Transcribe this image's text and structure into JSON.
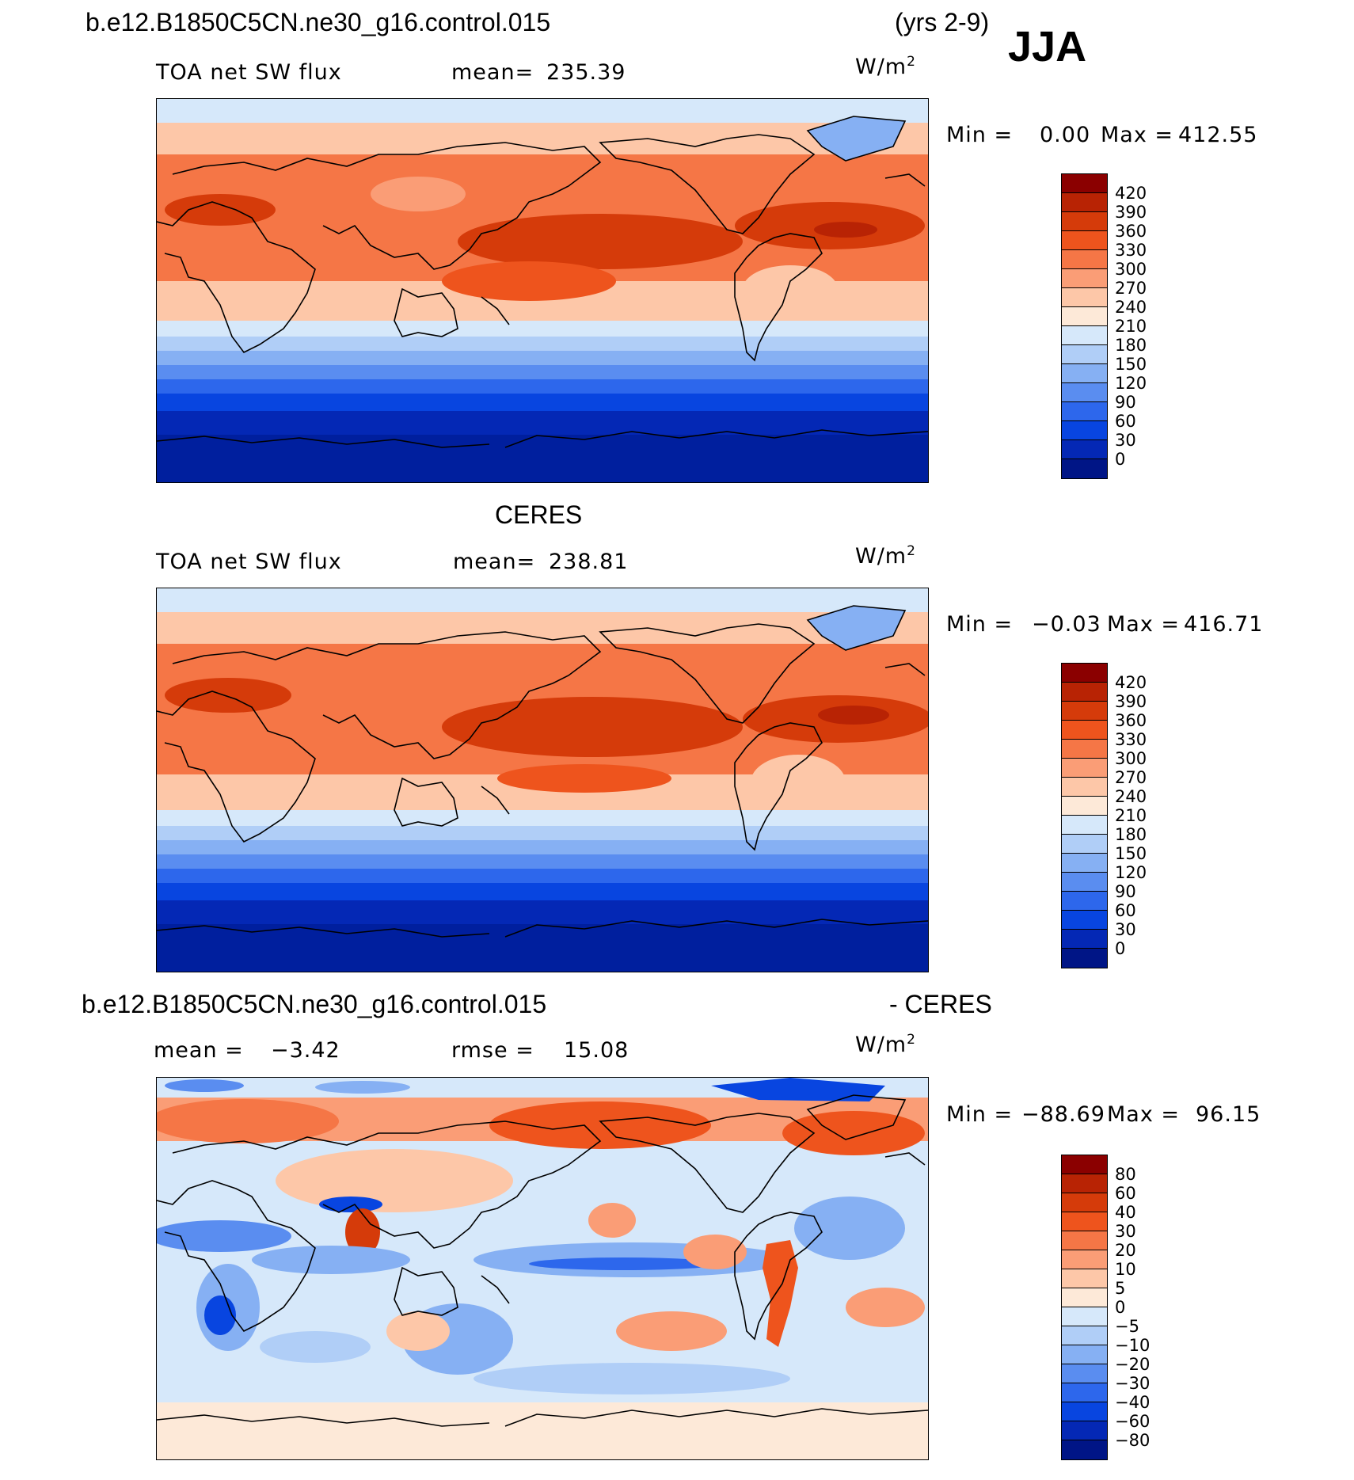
{
  "header": {
    "case_name": "b.e12.B1850C5CN.ne30_g16.control.015",
    "years": "(yrs 2-9)",
    "season": "JJA"
  },
  "panels": [
    {
      "id": "model",
      "title": "",
      "field_label": "TOA net SW flux",
      "stat1_label": "mean=",
      "stat1_value": "235.39",
      "stat2_label": "",
      "stat2_value": "",
      "units": "W/m",
      "units_exp": "2",
      "min_label": "Min =",
      "min_value": "0.00",
      "max_label": "Max =",
      "max_value": "412.55",
      "palette": "abs",
      "levels": [
        "420",
        "390",
        "360",
        "330",
        "300",
        "270",
        "240",
        "210",
        "180",
        "150",
        "120",
        "90",
        "60",
        "30",
        "0"
      ]
    },
    {
      "id": "obs",
      "title": "CERES",
      "field_label": "TOA net SW flux",
      "stat1_label": "mean=",
      "stat1_value": "238.81",
      "stat2_label": "",
      "stat2_value": "",
      "units": "W/m",
      "units_exp": "2",
      "min_label": "Min =",
      "min_value": "−0.03",
      "max_label": "Max =",
      "max_value": "416.71",
      "palette": "abs",
      "levels": [
        "420",
        "390",
        "360",
        "330",
        "300",
        "270",
        "240",
        "210",
        "180",
        "150",
        "120",
        "90",
        "60",
        "30",
        "0"
      ]
    },
    {
      "id": "diff",
      "title_left": "b.e12.B1850C5CN.ne30_g16.control.015",
      "title_right": "- CERES",
      "field_label": "",
      "stat1_label": "mean =",
      "stat1_value": "−3.42",
      "stat2_label": "rmse =",
      "stat2_value": "15.08",
      "units": "W/m",
      "units_exp": "2",
      "min_label": "Min =",
      "min_value": "−88.69",
      "max_label": "Max =",
      "max_value": "96.15",
      "palette": "diff",
      "levels": [
        "80",
        "60",
        "40",
        "30",
        "20",
        "10",
        "5",
        "0",
        "−5",
        "−10",
        "−20",
        "−30",
        "−40",
        "−60",
        "−80"
      ]
    }
  ],
  "colors": {
    "abs": [
      "#8b0000",
      "#b82304",
      "#d53b0a",
      "#ee541d",
      "#f57646",
      "#fa9d76",
      "#fdc7a8",
      "#fde9d8",
      "#d6e8fa",
      "#b0cef7",
      "#86b0f3",
      "#5a8df0",
      "#2d67ec",
      "#0845e0",
      "#0428b5",
      "#001586"
    ],
    "diff": [
      "#8b0000",
      "#b82304",
      "#d53b0a",
      "#ee541d",
      "#f57646",
      "#fa9d76",
      "#fdc7a8",
      "#fde9d8",
      "#d6e8fa",
      "#b0cef7",
      "#86b0f3",
      "#5a8df0",
      "#2d67ec",
      "#0845e0",
      "#0428b5",
      "#001586"
    ]
  }
}
